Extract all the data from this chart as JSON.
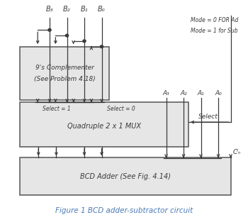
{
  "bg_color": "#ffffff",
  "title": "Figure 1 BCD adder-subtractor circuit",
  "title_color": "#4a7ab5",
  "title_fontsize": 7.5,
  "mode_text1": "Mode = 0 FOR Ad",
  "mode_text2": "Mode = 1 for Sub",
  "complementer_label1": "9's Complementer",
  "complementer_label2": "(See Problem 4.18)",
  "mux_label": "Quadruple 2 x 1 MUX",
  "mux_select1": "Select = 1",
  "mux_select0": "Select = 0",
  "adder_label": "BCD Adder (See Fig. 4.14)",
  "select_label": "Select",
  "b_labels": [
    "B₃",
    "B₂",
    "B₁",
    "B₀"
  ],
  "a_labels": [
    "A₃",
    "A₂",
    "A₁",
    "A₀"
  ],
  "cin_label": "Cᴵₙ",
  "line_color": "#3a3a3a",
  "box_face_color": "#e6e6e6",
  "box_edge_color": "#555555"
}
